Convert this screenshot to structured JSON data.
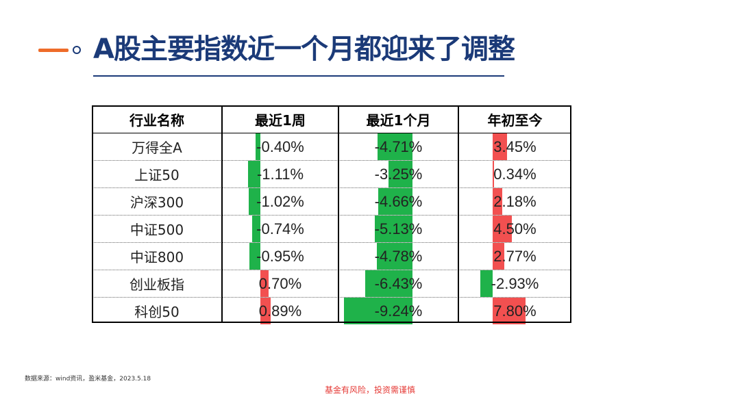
{
  "title": "A股主要指数近一个月都迎来了调整",
  "source": "数据来源：wind资讯，盈米基金，2023.5.18",
  "disclaimer": "基金有风险，投资需谨慎",
  "colors": {
    "title": "#1b3a78",
    "accent": "#ee6c2a",
    "negative": "#1fb24a",
    "positive": "#f25050",
    "disclaimer": "#e53935"
  },
  "chart_data": {
    "type": "table",
    "columns": [
      "行业名称",
      "最近1周",
      "最近1个月",
      "年初至今"
    ],
    "rows": [
      {
        "name": "万得全A",
        "week": -0.4,
        "month": -4.71,
        "ytd": 3.45,
        "week_label": "-0.40%",
        "month_label": "-4.71%",
        "ytd_label": "3.45%"
      },
      {
        "name": "上证50",
        "week": -1.11,
        "month": -3.25,
        "ytd": 0.34,
        "week_label": "-1.11%",
        "month_label": "-3.25%",
        "ytd_label": "0.34%"
      },
      {
        "name": "沪深300",
        "week": -1.02,
        "month": -4.66,
        "ytd": 2.18,
        "week_label": "-1.02%",
        "month_label": "-4.66%",
        "ytd_label": "2.18%"
      },
      {
        "name": "中证500",
        "week": -0.74,
        "month": -5.13,
        "ytd": 4.5,
        "week_label": "-0.74%",
        "month_label": "-5.13%",
        "ytd_label": "4.50%"
      },
      {
        "name": "中证800",
        "week": -0.95,
        "month": -4.78,
        "ytd": 2.77,
        "week_label": "-0.95%",
        "month_label": "-4.78%",
        "ytd_label": "2.77%"
      },
      {
        "name": "创业板指",
        "week": 0.7,
        "month": -6.43,
        "ytd": -2.93,
        "week_label": "0.70%",
        "month_label": "-6.43%",
        "ytd_label": "-2.93%"
      },
      {
        "name": "科创50",
        "week": 0.89,
        "month": -9.24,
        "ytd": 7.8,
        "week_label": "0.89%",
        "month_label": "-9.24%",
        "ytd_label": "7.80%"
      }
    ]
  }
}
